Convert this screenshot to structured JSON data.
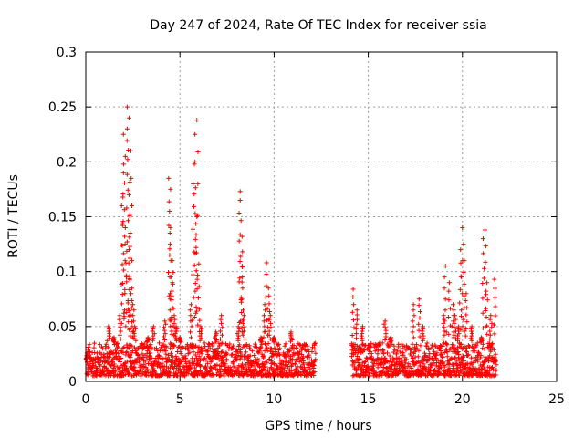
{
  "chart_data": {
    "type": "scatter",
    "title": "Day 247 of 2024, Rate Of TEC Index for receiver ssia",
    "xlabel": "GPS time / hours",
    "ylabel": "ROTI / TECUs",
    "xlim": [
      0,
      25
    ],
    "ylim": [
      0,
      0.3
    ],
    "xticks": [
      0,
      5,
      10,
      15,
      20,
      25
    ],
    "yticks": [
      0,
      0.05,
      0.1,
      0.15,
      0.2,
      0.25,
      0.3
    ],
    "xtick_labels": [
      "0",
      "5",
      "10",
      "15",
      "20",
      "25"
    ],
    "ytick_labels": [
      "0",
      "0.05",
      "0.1",
      "0.15",
      "0.2",
      "0.25",
      "0.3"
    ],
    "grid": true,
    "marker": "+",
    "color": "#ff0000",
    "series": [
      {
        "name": "ROTI",
        "coverage_hours": [
          [
            0.0,
            12.2
          ],
          [
            14.1,
            21.8
          ]
        ],
        "typical_range": [
          0.005,
          0.035
        ],
        "x": [
          0.1,
          0.3,
          0.6,
          0.9,
          1.2,
          1.5,
          1.8,
          1.9,
          2.0,
          2.0,
          2.1,
          2.1,
          2.2,
          2.2,
          2.3,
          2.3,
          2.3,
          2.4,
          2.4,
          2.5,
          2.6,
          2.8,
          3.0,
          3.3,
          3.6,
          3.9,
          4.2,
          4.4,
          4.5,
          4.5,
          4.6,
          4.6,
          4.7,
          4.8,
          5.0,
          5.3,
          5.6,
          5.7,
          5.8,
          5.8,
          5.9,
          5.9,
          6.0,
          6.1,
          6.3,
          6.6,
          6.9,
          7.2,
          7.5,
          7.8,
          8.1,
          8.2,
          8.2,
          8.3,
          8.3,
          8.4,
          8.7,
          9.0,
          9.3,
          9.5,
          9.6,
          9.7,
          9.8,
          10.0,
          10.3,
          10.6,
          10.9,
          11.2,
          11.5,
          11.8,
          12.1,
          14.2,
          14.4,
          14.7,
          15.0,
          15.3,
          15.6,
          15.9,
          16.2,
          16.5,
          16.8,
          17.1,
          17.4,
          17.7,
          17.9,
          18.2,
          18.5,
          18.8,
          19.0,
          19.1,
          19.3,
          19.5,
          19.6,
          19.8,
          19.9,
          20.0,
          20.1,
          20.2,
          20.5,
          20.8,
          21.0,
          21.1,
          21.2,
          21.3,
          21.5,
          21.7
        ],
        "y": [
          0.015,
          0.02,
          0.012,
          0.03,
          0.05,
          0.04,
          0.06,
          0.16,
          0.225,
          0.19,
          0.14,
          0.205,
          0.23,
          0.25,
          0.24,
          0.17,
          0.12,
          0.21,
          0.08,
          0.07,
          0.05,
          0.03,
          0.025,
          0.04,
          0.05,
          0.035,
          0.055,
          0.185,
          0.175,
          0.14,
          0.11,
          0.09,
          0.06,
          0.05,
          0.04,
          0.03,
          0.07,
          0.18,
          0.2,
          0.225,
          0.238,
          0.15,
          0.107,
          0.05,
          0.035,
          0.03,
          0.045,
          0.06,
          0.025,
          0.03,
          0.05,
          0.173,
          0.165,
          0.132,
          0.105,
          0.06,
          0.03,
          0.02,
          0.04,
          0.07,
          0.108,
          0.085,
          0.06,
          0.04,
          0.03,
          0.025,
          0.045,
          0.02,
          0.03,
          0.015,
          0.012,
          0.084,
          0.065,
          0.05,
          0.03,
          0.02,
          0.035,
          0.055,
          0.04,
          0.025,
          0.03,
          0.03,
          0.07,
          0.075,
          0.05,
          0.03,
          0.025,
          0.03,
          0.06,
          0.105,
          0.09,
          0.07,
          0.06,
          0.05,
          0.12,
          0.14,
          0.11,
          0.08,
          0.05,
          0.035,
          0.04,
          0.13,
          0.138,
          0.09,
          0.06,
          0.093
        ]
      }
    ]
  }
}
